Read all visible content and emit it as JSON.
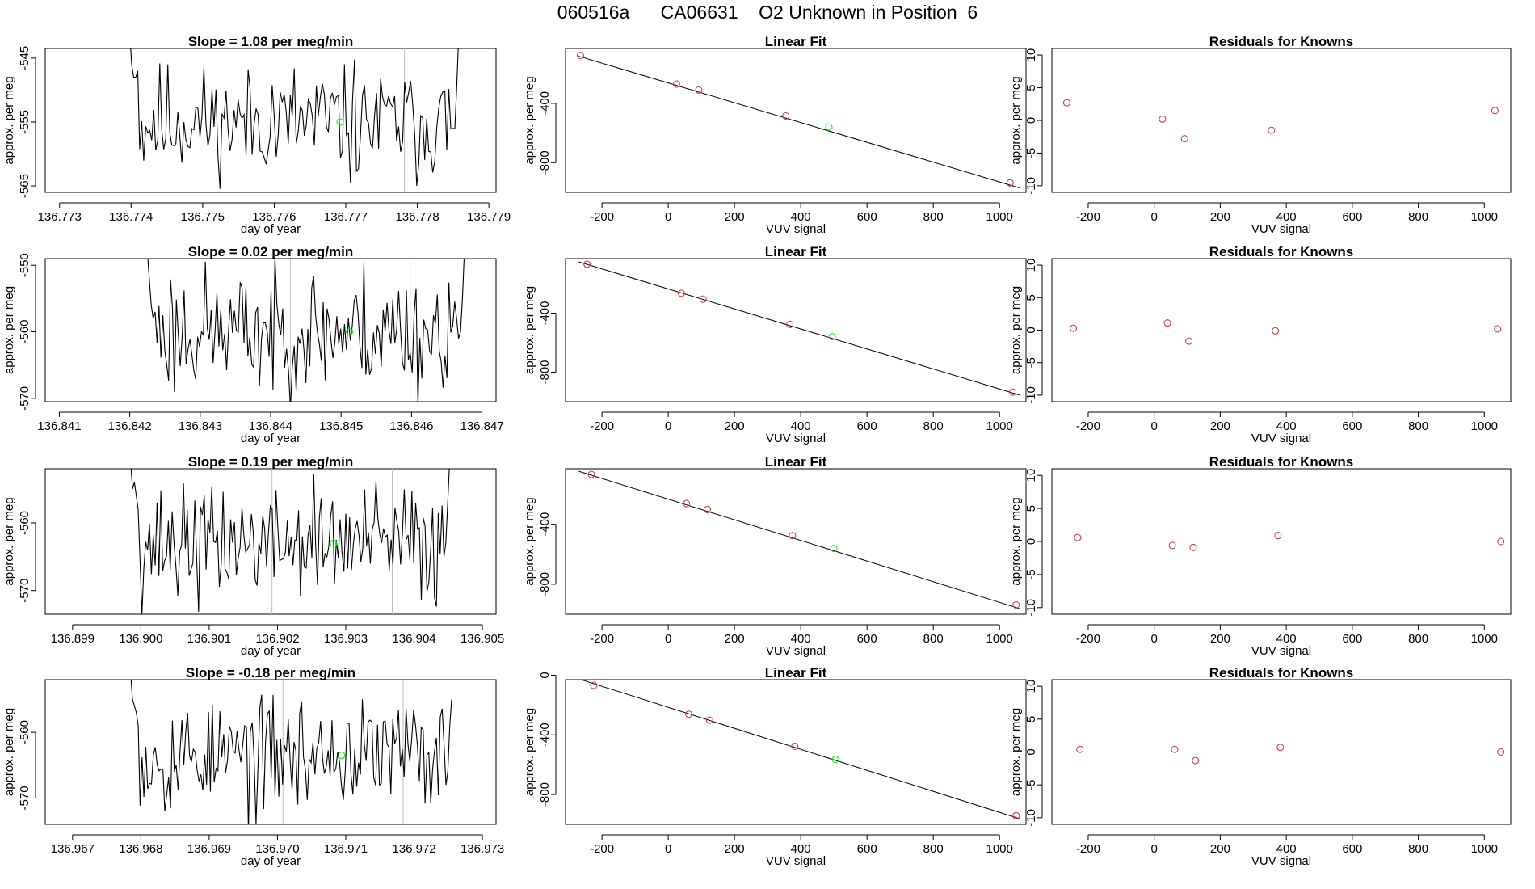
{
  "page_title": "060516a      CA06631    O2 Unknown in Position  6",
  "colors": {
    "line": "#000000",
    "frame": "#000000",
    "known_point": "#cd3333",
    "unknown_point": "#00ee00",
    "vline": "#bebebe"
  },
  "chart_data": [
    {
      "type": "line",
      "panel": "trace-1",
      "title": "Slope =  1.08  per meg/min",
      "xlabel": "day of year",
      "ylabel": "approx. per meg",
      "xlim": [
        136.7728,
        136.7791
      ],
      "ylim": [
        -566,
        -543.5
      ],
      "xticks": [
        "136.773",
        "136.774",
        "136.775",
        "136.776",
        "136.777",
        "136.778",
        "136.779"
      ],
      "xtick_values": [
        136.773,
        136.774,
        136.775,
        136.776,
        136.777,
        136.778,
        136.779
      ],
      "yticks": [
        "-545",
        "-555",
        "-565"
      ],
      "ytick_values": [
        -545,
        -555,
        -565
      ],
      "x_start": 136.77398,
      "x_end": 136.77858,
      "n_points": 165,
      "mean": -555.0,
      "amplitude": 4.3,
      "seed": 11,
      "start_values": [
        -541,
        -546,
        -548,
        -548,
        -547
      ],
      "end_values": [
        -556,
        -556,
        -549,
        -541
      ],
      "vlines": [
        136.77608,
        136.77782
      ],
      "marker": {
        "x": 136.77692,
        "y": -555
      }
    },
    {
      "type": "scatter",
      "panel": "fit-1",
      "title": "Linear Fit",
      "xlabel": "VUV signal",
      "ylabel": "approx. per meg",
      "xlim": [
        -310,
        1080
      ],
      "ylim": [
        -1000,
        -30
      ],
      "xticks": [
        "-200",
        "0",
        "200",
        "400",
        "600",
        "800",
        "1000"
      ],
      "xtick_values": [
        -200,
        0,
        200,
        400,
        600,
        800,
        1000
      ],
      "yticks": [
        "-400",
        "-800"
      ],
      "ytick_values": [
        -400,
        -800
      ],
      "line": {
        "x": [
          -270,
          1060
        ],
        "y": [
          -82,
          -970
        ]
      },
      "knowns": {
        "x": [
          -265,
          25,
          92,
          355,
          1032
        ],
        "y": [
          -77,
          -270,
          -310,
          -485,
          -936
        ]
      },
      "unknown": {
        "x": 485,
        "y": -560
      }
    },
    {
      "type": "scatter",
      "panel": "resid-1",
      "title": "Residuals for Knowns",
      "xlabel": "VUV signal",
      "ylabel": "approx. per meg",
      "xlim": [
        -310,
        1080
      ],
      "ylim": [
        -11,
        11
      ],
      "xticks": [
        "-200",
        "0",
        "200",
        "400",
        "600",
        "800",
        "1000"
      ],
      "xtick_values": [
        -200,
        0,
        200,
        400,
        600,
        800,
        1000
      ],
      "yticks": [
        "10",
        "5",
        "0",
        "-5",
        "-10"
      ],
      "ytick_values": [
        10,
        5,
        0,
        -5,
        -10
      ],
      "points": {
        "x": [
          -265,
          25,
          92,
          355,
          1032
        ],
        "y": [
          2.7,
          0.2,
          -2.8,
          -1.5,
          1.5
        ]
      }
    },
    {
      "type": "line",
      "panel": "trace-2",
      "title": "Slope =  0.02  per meg/min",
      "xlabel": "day of year",
      "ylabel": "approx. per meg",
      "xlim": [
        136.8408,
        136.8472
      ],
      "ylim": [
        -570.5,
        -549
      ],
      "xticks": [
        "136.841",
        "136.842",
        "136.843",
        "136.844",
        "136.845",
        "136.846",
        "136.847"
      ],
      "xtick_values": [
        136.841,
        136.842,
        136.843,
        136.844,
        136.845,
        136.846,
        136.847
      ],
      "yticks": [
        "-550",
        "-560",
        "-570"
      ],
      "ytick_values": [
        -550,
        -560,
        -570
      ],
      "x_start": 136.84225,
      "x_end": 136.84675,
      "n_points": 165,
      "mean": -560.0,
      "amplitude": 4.5,
      "seed": 23,
      "start_values": [
        -548,
        -552,
        -556,
        -558,
        -557
      ],
      "end_values": [
        -561,
        -560,
        -555,
        -548
      ],
      "vlines": [
        136.84428,
        136.84598
      ],
      "marker": {
        "x": 136.84512,
        "y": -560
      }
    },
    {
      "type": "scatter",
      "panel": "fit-2",
      "title": "Linear Fit",
      "xlabel": "VUV signal",
      "ylabel": "approx. per meg",
      "xlim": [
        -310,
        1080
      ],
      "ylim": [
        -1000,
        -30
      ],
      "xticks": [
        "-200",
        "0",
        "200",
        "400",
        "600",
        "800",
        "1000"
      ],
      "xtick_values": [
        -200,
        0,
        200,
        400,
        600,
        800,
        1000
      ],
      "yticks": [
        "-400",
        "-800"
      ],
      "ytick_values": [
        -400,
        -800
      ],
      "line": {
        "x": [
          -270,
          1060
        ],
        "y": [
          -52,
          -955
        ]
      },
      "knowns": {
        "x": [
          -245,
          40,
          105,
          367,
          1040
        ],
        "y": [
          -68,
          -265,
          -305,
          -476,
          -935
        ]
      },
      "unknown": {
        "x": 495,
        "y": -560
      }
    },
    {
      "type": "scatter",
      "panel": "resid-2",
      "title": "Residuals for Knowns",
      "xlabel": "VUV signal",
      "ylabel": "approx. per meg",
      "xlim": [
        -310,
        1080
      ],
      "ylim": [
        -11,
        11
      ],
      "xticks": [
        "-200",
        "0",
        "200",
        "400",
        "600",
        "800",
        "1000"
      ],
      "xtick_values": [
        -200,
        0,
        200,
        400,
        600,
        800,
        1000
      ],
      "yticks": [
        "10",
        "5",
        "0",
        "-5",
        "-10"
      ],
      "ytick_values": [
        10,
        5,
        0,
        -5,
        -10
      ],
      "points": {
        "x": [
          -245,
          40,
          105,
          367,
          1040
        ],
        "y": [
          0.3,
          1.1,
          -1.7,
          -0.1,
          0.2
        ]
      }
    },
    {
      "type": "line",
      "panel": "trace-3",
      "title": "Slope =  0.19  per meg/min",
      "xlabel": "day of year",
      "ylabel": "approx. per meg",
      "xlim": [
        136.8986,
        136.9052
      ],
      "ylim": [
        -573.5,
        -552
      ],
      "xticks": [
        "136.899",
        "136.900",
        "136.901",
        "136.902",
        "136.903",
        "136.904",
        "136.905"
      ],
      "xtick_values": [
        136.899,
        136.9,
        136.901,
        136.902,
        136.903,
        136.904,
        136.905
      ],
      "yticks": [
        "-560",
        "-570"
      ],
      "ytick_values": [
        -560,
        -570
      ],
      "x_start": 136.89985,
      "x_end": 136.90452,
      "n_points": 170,
      "mean": -563.0,
      "amplitude": 4.2,
      "seed": 37,
      "start_values": [
        -551,
        -555,
        -554,
        -556,
        -558
      ],
      "end_values": [
        -565,
        -563,
        -557,
        -551
      ],
      "vlines": [
        136.90192,
        136.90368
      ],
      "marker": {
        "x": 136.90282,
        "y": -563
      }
    },
    {
      "type": "scatter",
      "panel": "fit-3",
      "title": "Linear Fit",
      "xlabel": "VUV signal",
      "ylabel": "approx. per meg",
      "xlim": [
        -310,
        1080
      ],
      "ylim": [
        -1000,
        -30
      ],
      "xticks": [
        "-200",
        "0",
        "200",
        "400",
        "600",
        "800",
        "1000"
      ],
      "xtick_values": [
        -200,
        0,
        200,
        400,
        600,
        800,
        1000
      ],
      "yticks": [
        "-400",
        "-800"
      ],
      "ytick_values": [
        -400,
        -800
      ],
      "line": {
        "x": [
          -270,
          1060
        ],
        "y": [
          -47,
          -962
        ]
      },
      "knowns": {
        "x": [
          -232,
          55,
          118,
          375,
          1050
        ],
        "y": [
          -68,
          -262,
          -302,
          -476,
          -938
        ]
      },
      "unknown": {
        "x": 500,
        "y": -562
      }
    },
    {
      "type": "scatter",
      "panel": "resid-3",
      "title": "Residuals for Knowns",
      "xlabel": "VUV signal",
      "ylabel": "approx. per meg",
      "xlim": [
        -310,
        1080
      ],
      "ylim": [
        -11,
        11
      ],
      "xticks": [
        "-200",
        "0",
        "200",
        "400",
        "600",
        "800",
        "1000"
      ],
      "xtick_values": [
        -200,
        0,
        200,
        400,
        600,
        800,
        1000
      ],
      "yticks": [
        "10",
        "5",
        "0",
        "-5",
        "-10"
      ],
      "ytick_values": [
        10,
        5,
        0,
        -5,
        -10
      ],
      "points": {
        "x": [
          -232,
          55,
          118,
          375,
          1050
        ],
        "y": [
          0.6,
          -0.6,
          -0.9,
          0.9,
          0.0
        ]
      }
    },
    {
      "type": "line",
      "panel": "trace-4",
      "title": "Slope =  -0.18  per meg/min",
      "xlabel": "day of year",
      "ylabel": "approx. per meg",
      "xlim": [
        136.9666,
        136.9732
      ],
      "ylim": [
        -574,
        -552
      ],
      "xticks": [
        "136.967",
        "136.968",
        "136.969",
        "136.970",
        "136.971",
        "136.972",
        "136.973"
      ],
      "xtick_values": [
        136.967,
        136.968,
        136.969,
        136.97,
        136.971,
        136.972,
        136.973
      ],
      "yticks": [
        "-560",
        "-570"
      ],
      "ytick_values": [
        -560,
        -570
      ],
      "x_start": 136.96785,
      "x_end": 136.97255,
      "n_points": 170,
      "mean": -563.5,
      "amplitude": 4.2,
      "seed": 53,
      "start_values": [
        -551,
        -555,
        -556,
        -557,
        -559
      ],
      "end_values": [
        -568,
        -566,
        -559,
        -555
      ],
      "vlines": [
        136.97008,
        136.97184
      ],
      "marker": {
        "x": 136.97094,
        "y": -563.5
      }
    },
    {
      "type": "scatter",
      "panel": "fit-4",
      "title": "Linear Fit",
      "xlabel": "VUV signal",
      "ylabel": "approx. per meg",
      "xlim": [
        -310,
        1080
      ],
      "ylim": [
        -1000,
        -30
      ],
      "xticks": [
        "-200",
        "0",
        "200",
        "400",
        "600",
        "800",
        "1000"
      ],
      "xtick_values": [
        -200,
        0,
        200,
        400,
        600,
        800,
        1000
      ],
      "yticks": [
        "0",
        "-400",
        "-800"
      ],
      "ytick_values": [
        0,
        -400,
        -800
      ],
      "line": {
        "x": [
          -270,
          1060
        ],
        "y": [
          -25,
          -962
        ]
      },
      "knowns": {
        "x": [
          -225,
          62,
          125,
          382,
          1050
        ],
        "y": [
          -68,
          -262,
          -302,
          -477,
          -942
        ]
      },
      "unknown": {
        "x": 505,
        "y": -564
      }
    },
    {
      "type": "scatter",
      "panel": "resid-4",
      "title": "Residuals for Knowns",
      "xlabel": "VUV signal",
      "ylabel": "approx. per meg",
      "xlim": [
        -310,
        1080
      ],
      "ylim": [
        -11,
        11
      ],
      "xticks": [
        "-200",
        "0",
        "200",
        "400",
        "600",
        "800",
        "1000"
      ],
      "xtick_values": [
        -200,
        0,
        200,
        400,
        600,
        800,
        1000
      ],
      "yticks": [
        "10",
        "5",
        "0",
        "-5",
        "-10"
      ],
      "ytick_values": [
        10,
        5,
        0,
        -5,
        -10
      ],
      "points": {
        "x": [
          -225,
          62,
          125,
          382,
          1050
        ],
        "y": [
          0.4,
          0.4,
          -1.3,
          0.7,
          0.0
        ]
      }
    }
  ]
}
